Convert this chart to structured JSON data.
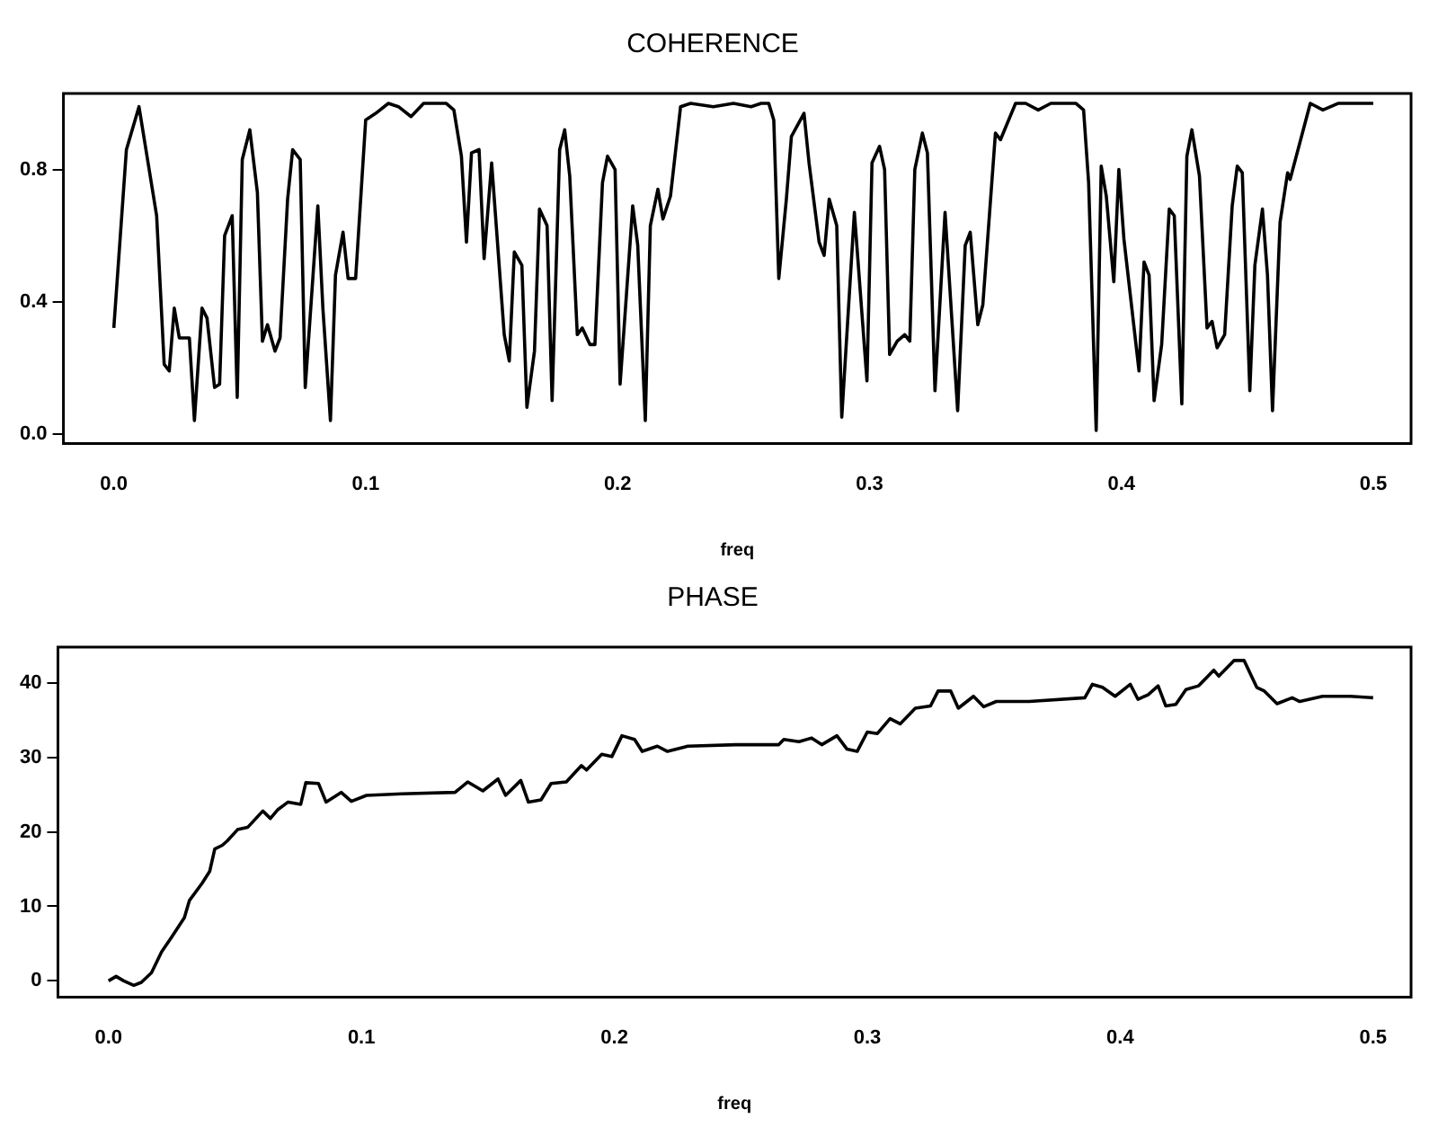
{
  "chart_data": [
    {
      "type": "line",
      "title": "COHERENCE",
      "xlabel": "freq",
      "color": "#000000",
      "xlim": [
        -0.02,
        0.515
      ],
      "ylim": [
        -0.03,
        1.03
      ],
      "xticks": [
        {
          "value": 0,
          "label": "0.0"
        },
        {
          "value": 0.1,
          "label": "0.1"
        },
        {
          "value": 0.2,
          "label": "0.2"
        },
        {
          "value": 0.3,
          "label": "0.3"
        },
        {
          "value": 0.4,
          "label": "0.4"
        },
        {
          "value": 0.5,
          "label": "0.5"
        }
      ],
      "yticks": [
        {
          "value": 0,
          "label": "0.0"
        },
        {
          "value": 0.4,
          "label": "0.4"
        },
        {
          "value": 0.8,
          "label": "0.8"
        }
      ],
      "x": [
        0,
        0.005,
        0.01,
        0.017,
        0.02,
        0.022,
        0.024,
        0.026,
        0.03,
        0.032,
        0.035,
        0.037,
        0.04,
        0.042,
        0.044,
        0.047,
        0.049,
        0.051,
        0.054,
        0.057,
        0.059,
        0.061,
        0.064,
        0.066,
        0.069,
        0.071,
        0.074,
        0.076,
        0.079,
        0.081,
        0.083,
        0.086,
        0.088,
        0.091,
        0.093,
        0.096,
        0.1,
        0.104,
        0.109,
        0.113,
        0.118,
        0.123,
        0.132,
        0.135,
        0.138,
        0.14,
        0.142,
        0.145,
        0.147,
        0.15,
        0.155,
        0.157,
        0.159,
        0.162,
        0.164,
        0.167,
        0.169,
        0.172,
        0.174,
        0.177,
        0.179,
        0.181,
        0.184,
        0.186,
        0.189,
        0.191,
        0.194,
        0.196,
        0.199,
        0.201,
        0.206,
        0.208,
        0.211,
        0.213,
        0.216,
        0.218,
        0.221,
        0.225,
        0.229,
        0.238,
        0.246,
        0.253,
        0.257,
        0.26,
        0.262,
        0.264,
        0.267,
        0.269,
        0.274,
        0.276,
        0.28,
        0.282,
        0.284,
        0.287,
        0.289,
        0.294,
        0.299,
        0.301,
        0.304,
        0.306,
        0.308,
        0.311,
        0.314,
        0.316,
        0.318,
        0.321,
        0.323,
        0.326,
        0.33,
        0.335,
        0.338,
        0.34,
        0.343,
        0.345,
        0.35,
        0.352,
        0.358,
        0.362,
        0.367,
        0.372,
        0.382,
        0.385,
        0.387,
        0.39,
        0.392,
        0.394,
        0.397,
        0.399,
        0.401,
        0.407,
        0.409,
        0.411,
        0.413,
        0.416,
        0.419,
        0.421,
        0.424,
        0.426,
        0.428,
        0.431,
        0.434,
        0.436,
        0.438,
        0.441,
        0.444,
        0.446,
        0.448,
        0.451,
        0.453,
        0.456,
        0.458,
        0.46,
        0.463,
        0.466,
        0.467,
        0.475,
        0.48,
        0.486,
        0.491,
        0.5
      ],
      "values": [
        0.32,
        0.86,
        0.99,
        0.66,
        0.21,
        0.19,
        0.38,
        0.29,
        0.29,
        0.04,
        0.38,
        0.35,
        0.14,
        0.15,
        0.6,
        0.66,
        0.11,
        0.83,
        0.92,
        0.73,
        0.28,
        0.33,
        0.25,
        0.29,
        0.71,
        0.86,
        0.83,
        0.14,
        0.47,
        0.69,
        0.38,
        0.04,
        0.48,
        0.61,
        0.47,
        0.47,
        0.95,
        0.97,
        1.0,
        0.99,
        0.96,
        1.0,
        1.0,
        0.98,
        0.84,
        0.58,
        0.85,
        0.86,
        0.53,
        0.82,
        0.3,
        0.22,
        0.55,
        0.51,
        0.08,
        0.25,
        0.68,
        0.63,
        0.1,
        0.86,
        0.92,
        0.78,
        0.3,
        0.32,
        0.27,
        0.27,
        0.76,
        0.84,
        0.8,
        0.15,
        0.69,
        0.57,
        0.04,
        0.63,
        0.74,
        0.65,
        0.72,
        0.99,
        1.0,
        0.99,
        1.0,
        0.99,
        1.0,
        1.0,
        0.95,
        0.47,
        0.71,
        0.9,
        0.97,
        0.82,
        0.58,
        0.54,
        0.71,
        0.63,
        0.05,
        0.67,
        0.16,
        0.82,
        0.87,
        0.8,
        0.24,
        0.28,
        0.3,
        0.28,
        0.8,
        0.91,
        0.85,
        0.13,
        0.67,
        0.07,
        0.57,
        0.61,
        0.33,
        0.39,
        0.91,
        0.89,
        1.0,
        1.0,
        0.98,
        1.0,
        1.0,
        0.98,
        0.76,
        0.01,
        0.81,
        0.72,
        0.46,
        0.8,
        0.59,
        0.19,
        0.52,
        0.48,
        0.1,
        0.27,
        0.68,
        0.66,
        0.09,
        0.84,
        0.92,
        0.78,
        0.32,
        0.34,
        0.26,
        0.3,
        0.69,
        0.81,
        0.79,
        0.13,
        0.51,
        0.68,
        0.48,
        0.07,
        0.64,
        0.79,
        0.77,
        1.0,
        0.98,
        1.0,
        1.0,
        1.0
      ]
    },
    {
      "type": "line",
      "title": "PHASE",
      "xlabel": "freq",
      "color": "#000000",
      "xlim": [
        -0.02,
        0.515
      ],
      "ylim": [
        -2.2,
        44.8
      ],
      "xticks": [
        {
          "value": 0,
          "label": "0.0"
        },
        {
          "value": 0.1,
          "label": "0.1"
        },
        {
          "value": 0.2,
          "label": "0.2"
        },
        {
          "value": 0.3,
          "label": "0.3"
        },
        {
          "value": 0.4,
          "label": "0.4"
        },
        {
          "value": 0.5,
          "label": "0.5"
        }
      ],
      "yticks": [
        0,
        10,
        20,
        30,
        40
      ],
      "x": [
        0,
        0.003,
        0.006,
        0.01,
        0.013,
        0.017,
        0.021,
        0.025,
        0.03,
        0.032,
        0.037,
        0.04,
        0.042,
        0.045,
        0.047,
        0.051,
        0.055,
        0.061,
        0.064,
        0.067,
        0.071,
        0.076,
        0.078,
        0.083,
        0.086,
        0.092,
        0.096,
        0.102,
        0.116,
        0.137,
        0.142,
        0.148,
        0.154,
        0.157,
        0.163,
        0.166,
        0.171,
        0.175,
        0.181,
        0.187,
        0.189,
        0.195,
        0.199,
        0.203,
        0.208,
        0.211,
        0.217,
        0.221,
        0.229,
        0.248,
        0.265,
        0.267,
        0.273,
        0.278,
        0.282,
        0.288,
        0.292,
        0.296,
        0.3,
        0.304,
        0.309,
        0.313,
        0.319,
        0.325,
        0.328,
        0.333,
        0.336,
        0.342,
        0.346,
        0.351,
        0.364,
        0.386,
        0.389,
        0.393,
        0.398,
        0.404,
        0.407,
        0.411,
        0.415,
        0.418,
        0.422,
        0.426,
        0.431,
        0.437,
        0.439,
        0.445,
        0.449,
        0.454,
        0.457,
        0.462,
        0.468,
        0.471,
        0.48,
        0.491,
        0.5
      ],
      "values": [
        0,
        0.6,
        0,
        -0.6,
        -0.2,
        1.1,
        3.9,
        5.9,
        8.5,
        10.8,
        13.1,
        14.7,
        17.7,
        18.2,
        18.8,
        20.3,
        20.6,
        22.8,
        21.8,
        23,
        24,
        23.7,
        26.6,
        26.5,
        24,
        25.3,
        24.1,
        24.9,
        25.1,
        25.3,
        26.7,
        25.5,
        27.1,
        24.9,
        26.9,
        24,
        24.3,
        26.5,
        26.7,
        28.9,
        28.3,
        30.4,
        30.1,
        32.9,
        32.4,
        30.8,
        31.5,
        30.8,
        31.5,
        31.7,
        31.7,
        32.4,
        32.1,
        32.6,
        31.7,
        32.9,
        31.1,
        30.8,
        33.4,
        33.2,
        35.2,
        34.5,
        36.6,
        36.9,
        38.9,
        38.9,
        36.6,
        38.2,
        36.8,
        37.5,
        37.5,
        38,
        39.8,
        39.4,
        38.2,
        39.8,
        37.8,
        38.4,
        39.6,
        36.9,
        37.1,
        39.1,
        39.6,
        41.7,
        40.9,
        43,
        43,
        39.4,
        38.9,
        37.2,
        38,
        37.5,
        38.2,
        38.2,
        38
      ]
    }
  ]
}
